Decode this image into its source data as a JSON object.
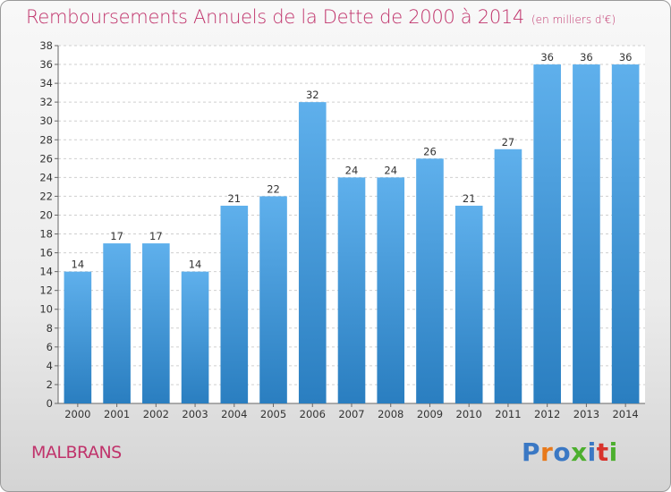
{
  "header": {
    "title": "Remboursements Annuels de la Dette de 2000 à 2014",
    "unit_note": "(en milliers d'€)"
  },
  "footer": {
    "place_name": "MALBRANS",
    "logo_letters": [
      "P",
      "r",
      "o",
      "x",
      "i",
      "t",
      "i"
    ]
  },
  "colors": {
    "title": "#c0336b",
    "bar_top": "#5fb0ec",
    "bar_bottom": "#2a7ec0",
    "logo": [
      "#3a78c4",
      "#e8791a",
      "#3a78c4",
      "#4caf2e",
      "#3a78c4",
      "#d8332c",
      "#4caf2e"
    ]
  },
  "chart_data": {
    "type": "bar",
    "title": "Remboursements Annuels de la Dette de 2000 à 2014",
    "subtitle": "(en milliers d'€)",
    "categories": [
      "2000",
      "2001",
      "2002",
      "2003",
      "2004",
      "2005",
      "2006",
      "2007",
      "2008",
      "2009",
      "2010",
      "2011",
      "2012",
      "2013",
      "2014"
    ],
    "values": [
      14,
      17,
      17,
      14,
      21,
      22,
      32,
      24,
      24,
      26,
      21,
      27,
      36,
      36,
      36
    ],
    "ylim": [
      0,
      38
    ],
    "ytick_step": 2,
    "grid": true,
    "data_labels": true
  }
}
